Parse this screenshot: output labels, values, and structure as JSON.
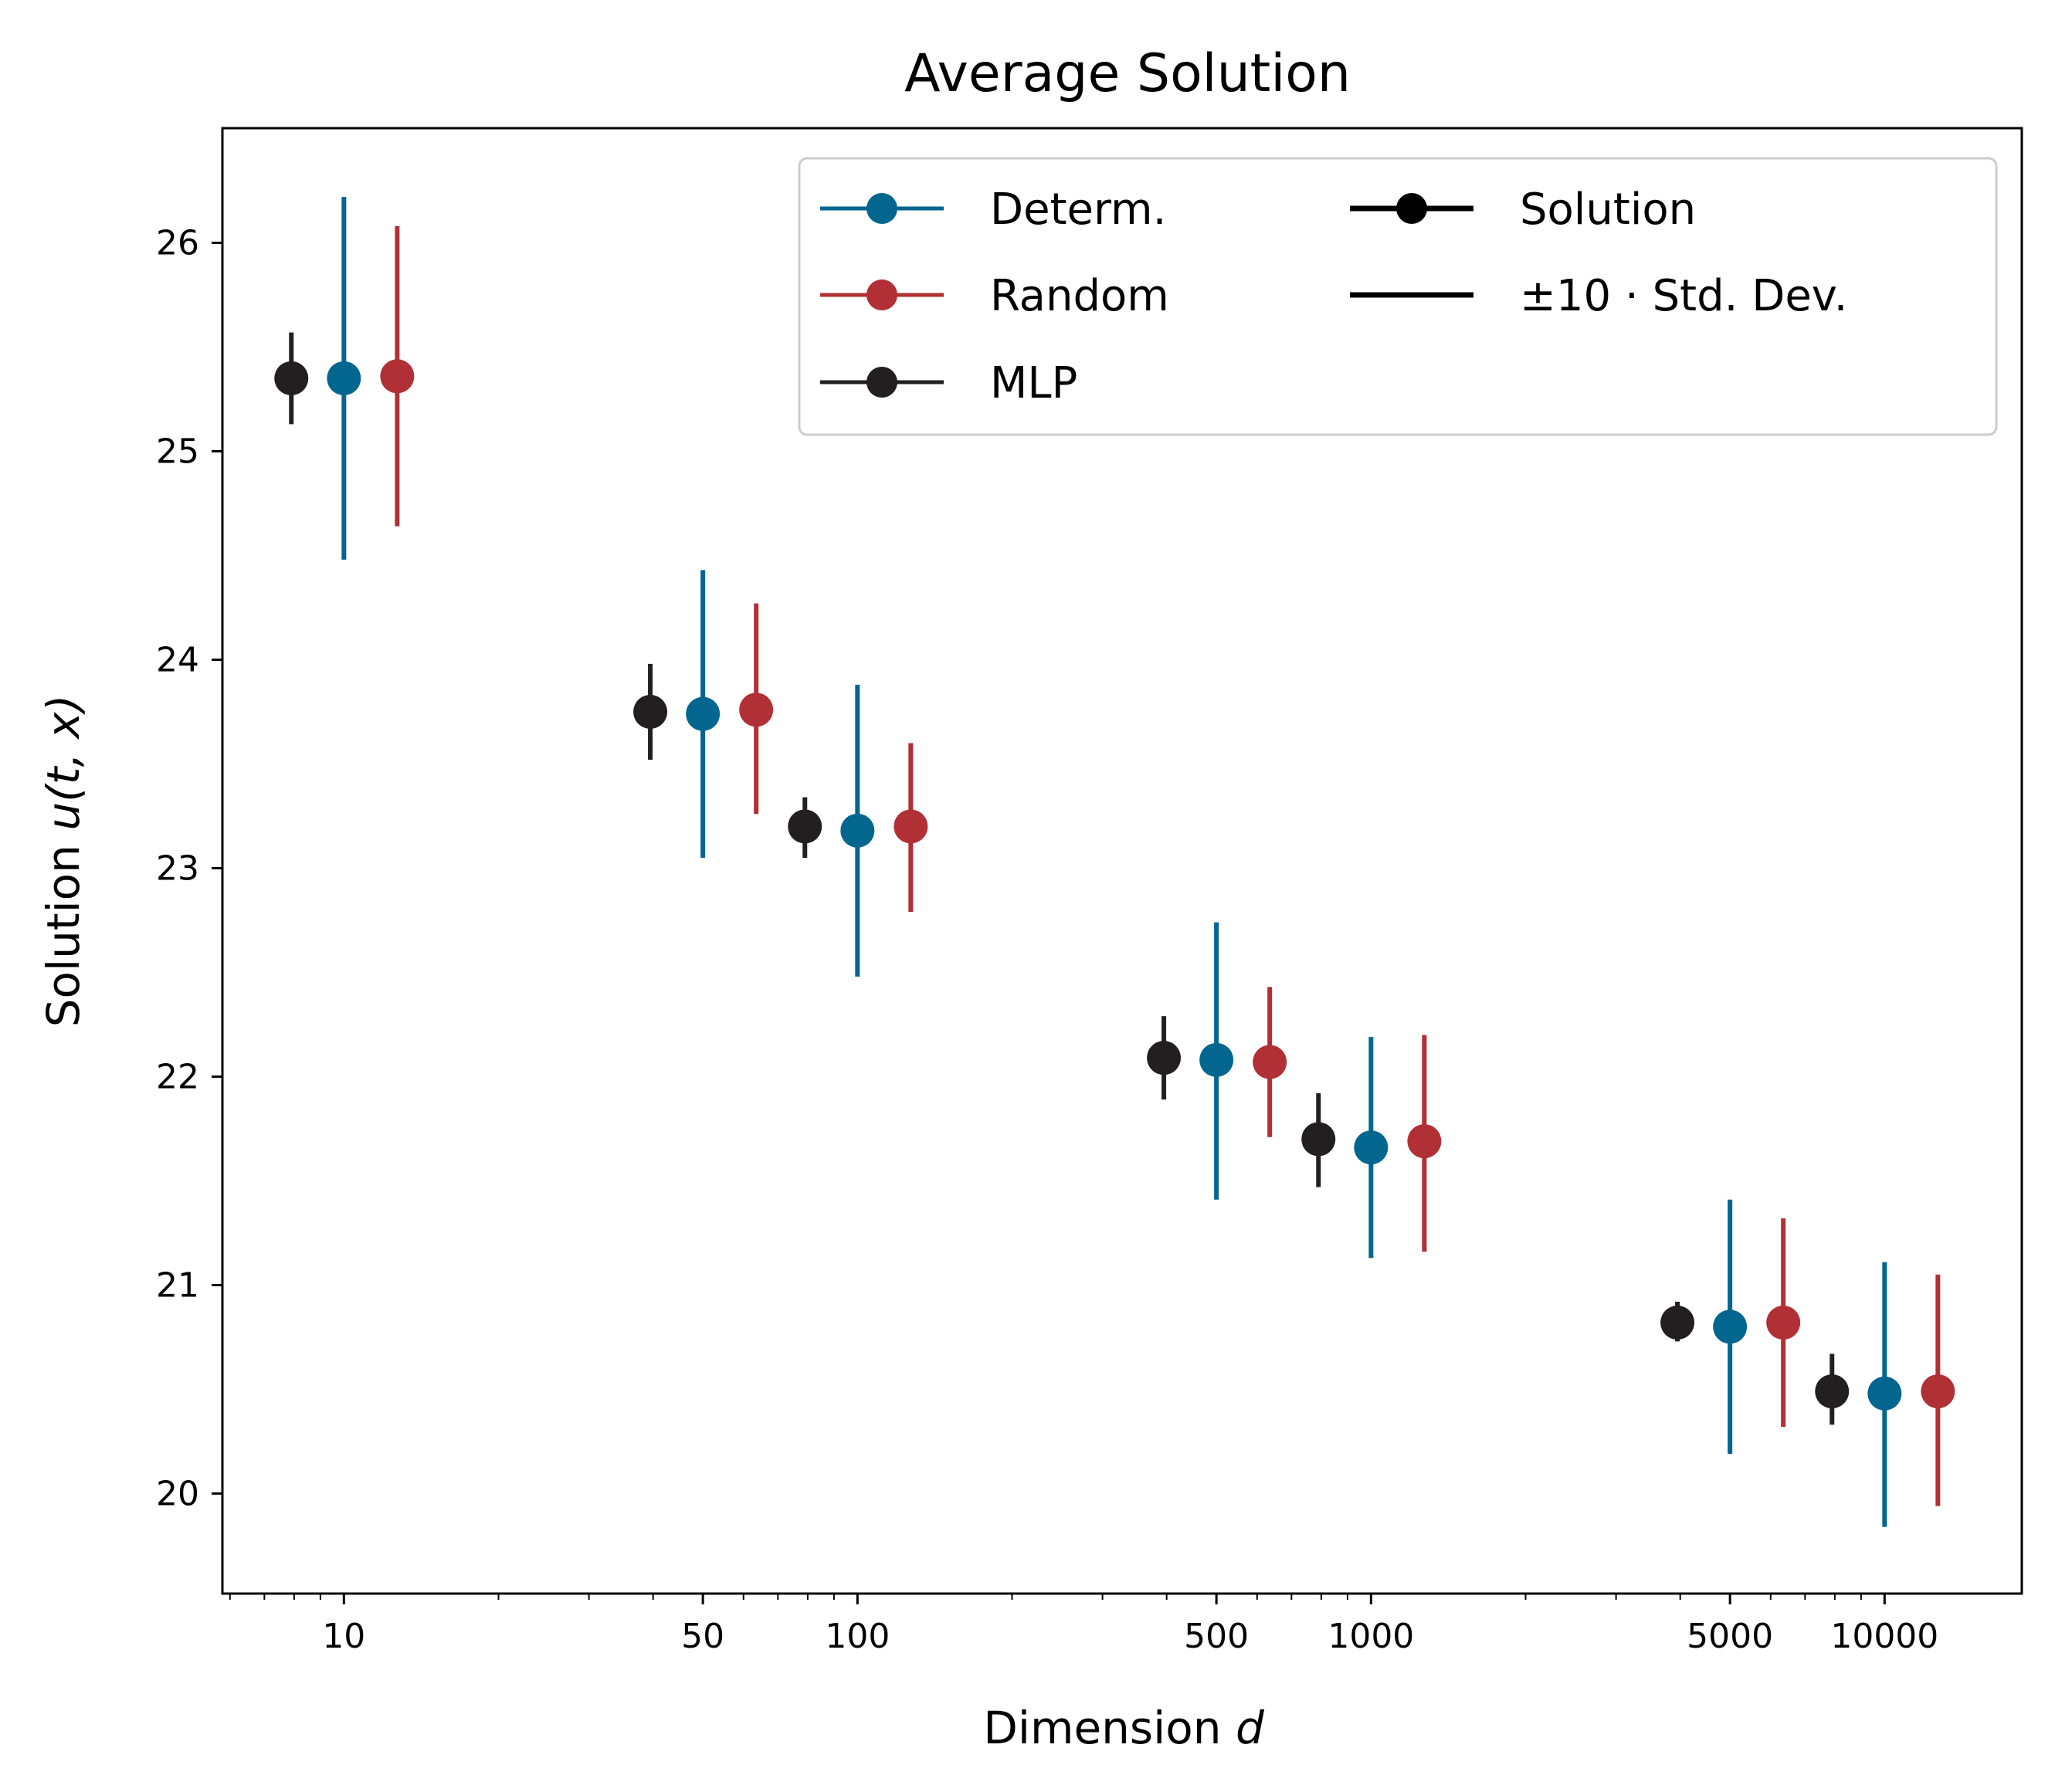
{
  "chart_data": {
    "type": "scatter",
    "title": "Average Solution",
    "xlabel": "Dimension",
    "xlabel_var": "d",
    "ylabel": "Solution",
    "ylabel_var": "u(t, x)",
    "x_scale": "log",
    "xlim": [
      5.8,
      18500
    ],
    "ylim": [
      19.52,
      26.55
    ],
    "x_ticks": [
      10,
      50,
      100,
      500,
      1000,
      5000,
      10000
    ],
    "x_tick_labels": [
      "10",
      "50",
      "100",
      "500",
      "1000",
      "5000",
      "10000"
    ],
    "y_ticks": [
      20,
      21,
      22,
      23,
      24,
      25,
      26
    ],
    "y_tick_labels": [
      "20",
      "21",
      "22",
      "23",
      "24",
      "25",
      "26"
    ],
    "grid": false,
    "legend_placement": "upper-right",
    "categories": [
      10,
      50,
      100,
      500,
      1000,
      5000,
      10000
    ],
    "series": [
      {
        "name": "Determ.",
        "color": "#03668f",
        "x": [
          10,
          50,
          100,
          500,
          1000,
          5000,
          10000
        ],
        "y": [
          25.35,
          23.74,
          23.18,
          22.08,
          21.66,
          20.8,
          20.48
        ],
        "yerr_low": [
          24.48,
          23.05,
          22.48,
          21.41,
          21.13,
          20.19,
          19.84
        ],
        "yerr_high": [
          26.22,
          24.43,
          23.88,
          22.74,
          22.19,
          21.41,
          21.11
        ]
      },
      {
        "name": "Random",
        "color": "#b03035",
        "x": [
          12.7,
          63.5,
          127,
          635,
          1270,
          6350,
          12700
        ],
        "y": [
          25.36,
          23.76,
          23.2,
          22.07,
          21.69,
          20.82,
          20.49
        ],
        "yerr_low": [
          24.64,
          23.26,
          22.79,
          21.71,
          21.16,
          20.32,
          19.94
        ],
        "yerr_high": [
          26.08,
          24.27,
          23.6,
          22.43,
          22.2,
          21.32,
          21.05
        ]
      },
      {
        "name": "MLP",
        "color": "#231f20",
        "x": [
          7.9,
          39.5,
          79,
          395,
          790,
          3950,
          7900
        ],
        "y": [
          25.35,
          23.75,
          23.2,
          22.09,
          21.7,
          20.82,
          20.49
        ],
        "yerr_low": [
          25.13,
          23.52,
          23.05,
          21.89,
          21.47,
          20.73,
          20.33
        ],
        "yerr_high": [
          25.57,
          23.98,
          23.34,
          22.29,
          21.92,
          20.92,
          20.67
        ]
      }
    ],
    "legend_extra": [
      {
        "name": "Solution",
        "kind": "marker-line",
        "color": "#000000"
      },
      {
        "name": "±10 ·  Std. Dev.",
        "kind": "line",
        "color": "#000000"
      }
    ]
  }
}
